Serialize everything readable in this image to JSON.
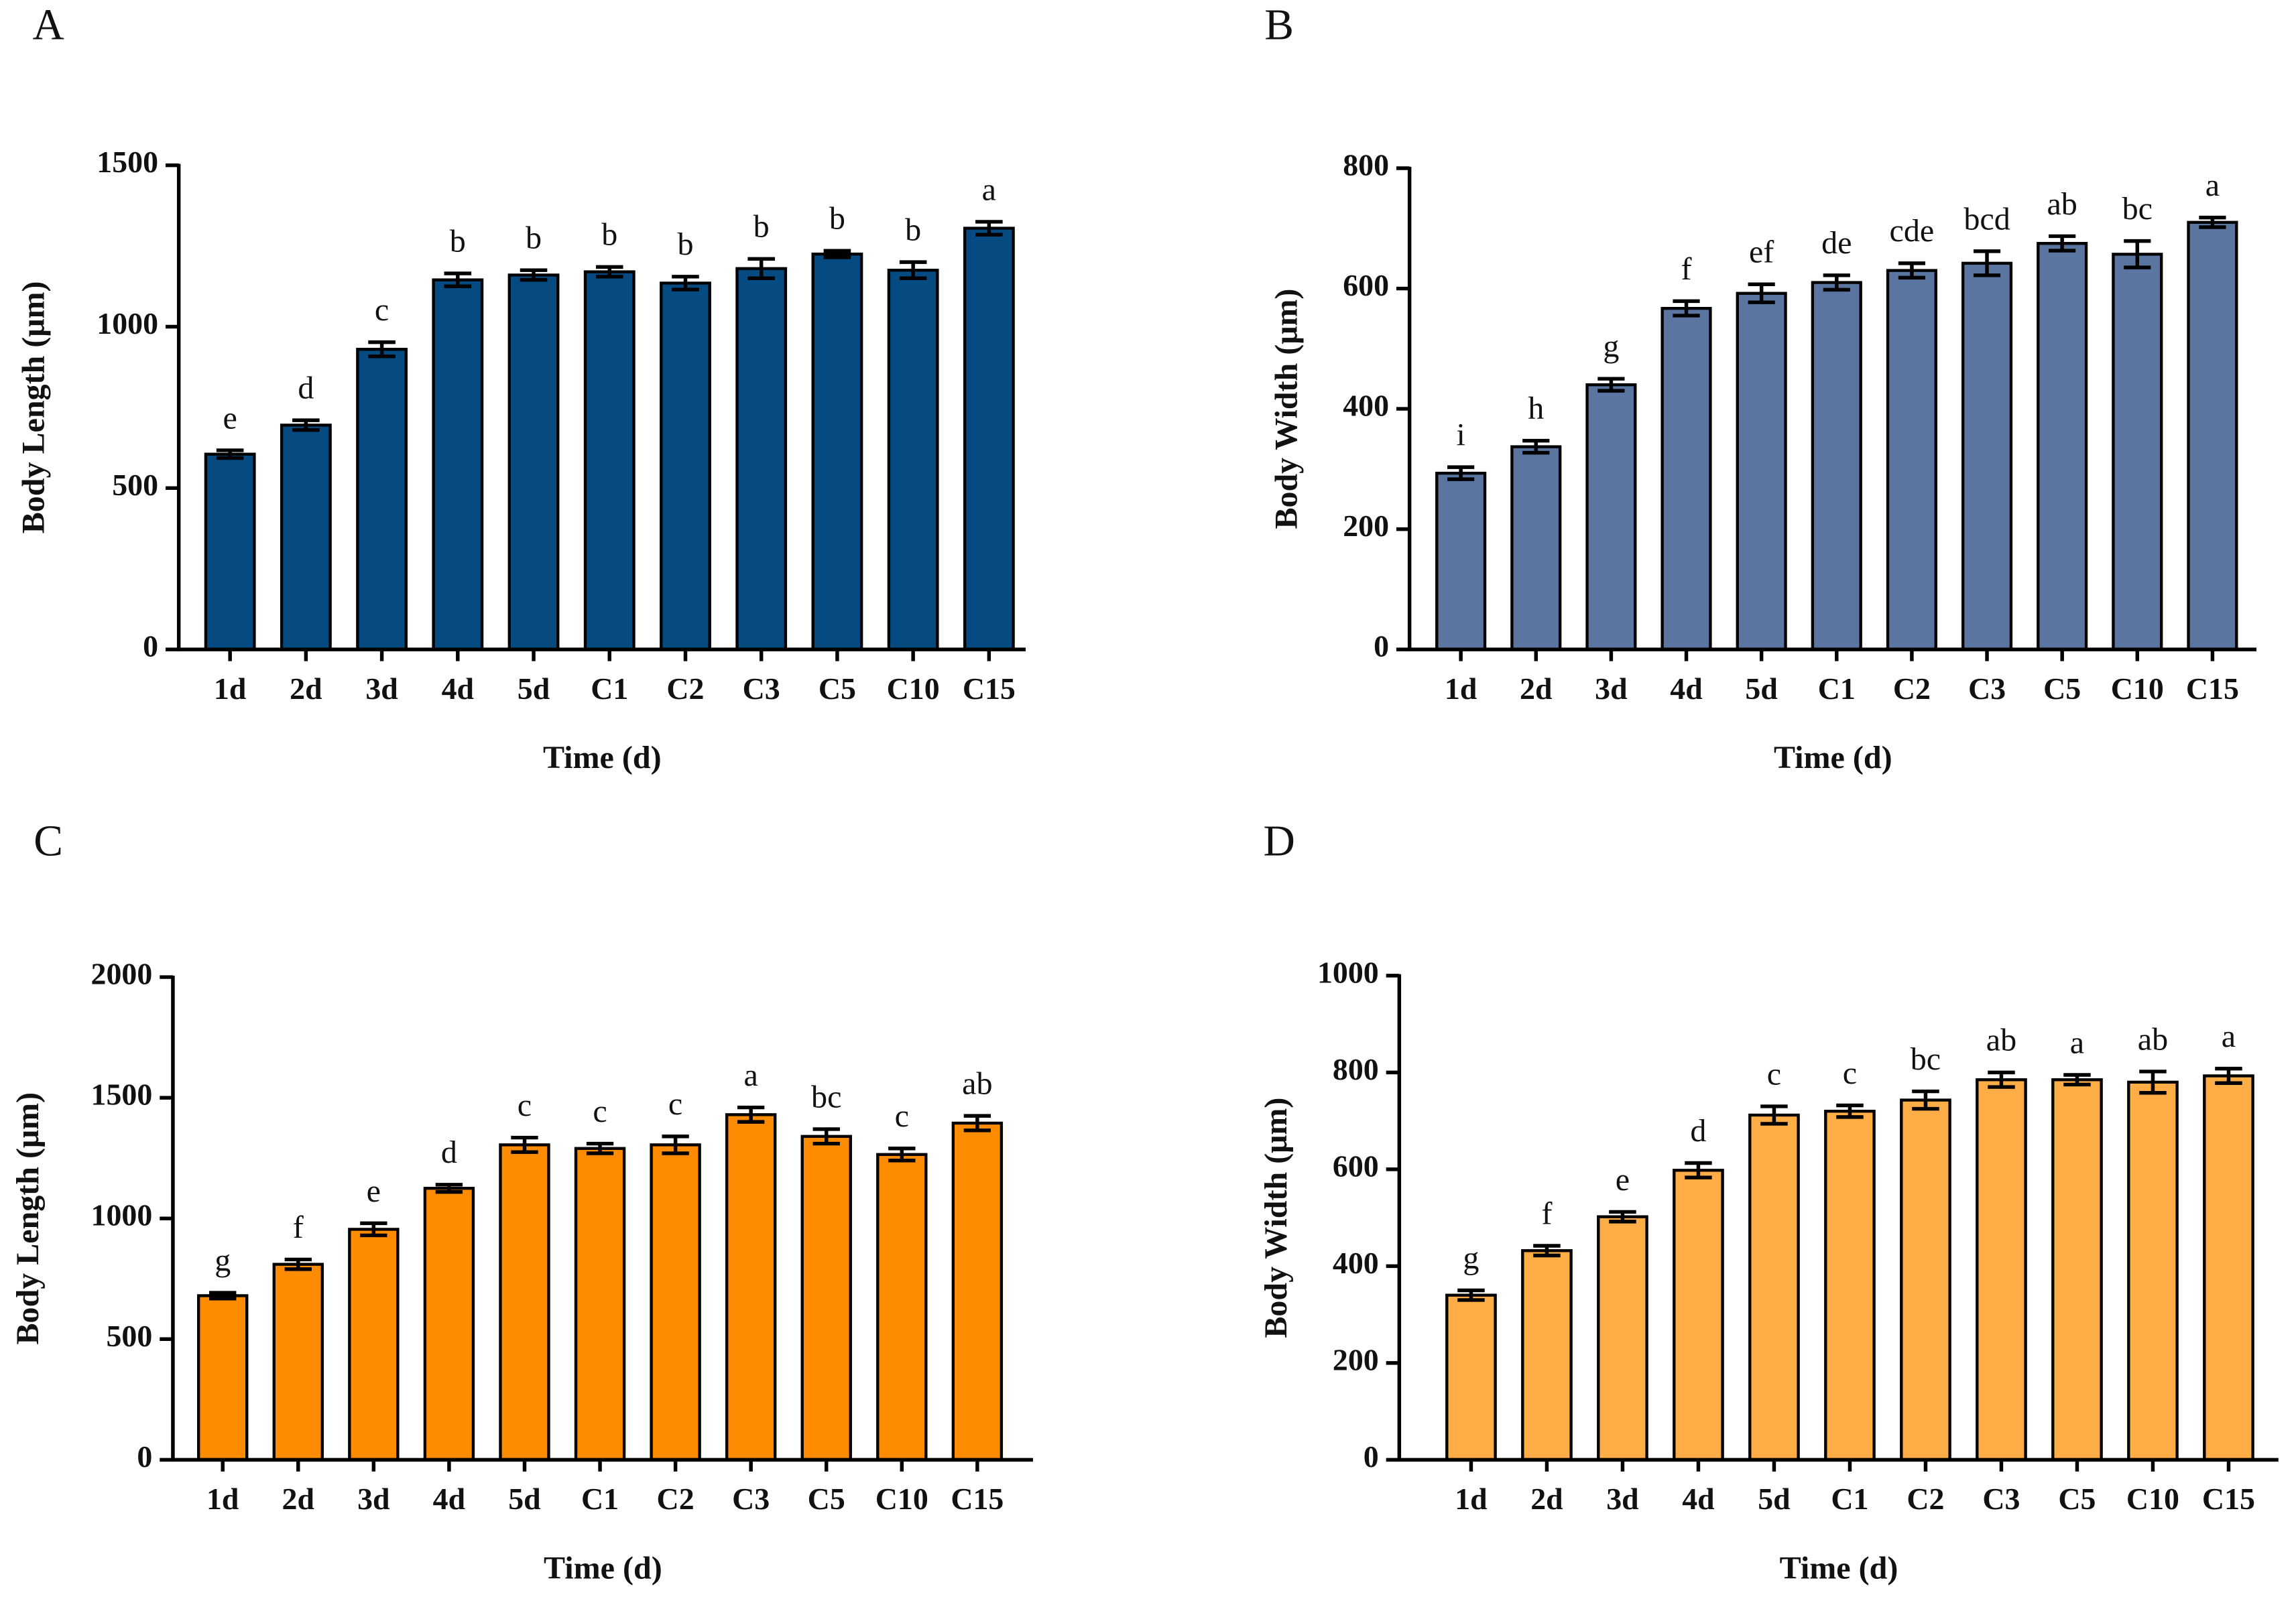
{
  "chart_data": [
    {
      "type": "bar",
      "panel": "A",
      "ylabel": "Body Length (μm)",
      "xlabel": "Time (d)",
      "categories": [
        "1d",
        "2d",
        "3d",
        "4d",
        "5d",
        "C1",
        "C2",
        "C3",
        "C5",
        "C10",
        "C15"
      ],
      "values": [
        605,
        695,
        930,
        1145,
        1160,
        1170,
        1135,
        1180,
        1225,
        1175,
        1305
      ],
      "errors": [
        12,
        15,
        22,
        20,
        15,
        15,
        20,
        30,
        10,
        25,
        20
      ],
      "annotations": [
        "e",
        "d",
        "c",
        "b",
        "b",
        "b",
        "b",
        "b",
        "b",
        "b",
        "a"
      ],
      "color": "#054a80",
      "ylim": [
        0,
        1500
      ],
      "yticks": [
        0,
        500,
        1000,
        1500
      ]
    },
    {
      "type": "bar",
      "panel": "B",
      "ylabel": "Body Width (μm)",
      "xlabel": "Time (d)",
      "categories": [
        "1d",
        "2d",
        "3d",
        "4d",
        "5d",
        "C1",
        "C2",
        "C3",
        "C5",
        "C10",
        "C15"
      ],
      "values": [
        293,
        337,
        440,
        567,
        592,
        610,
        630,
        642,
        675,
        657,
        710
      ],
      "errors": [
        10,
        10,
        10,
        12,
        15,
        12,
        12,
        20,
        12,
        22,
        8
      ],
      "annotations": [
        "i",
        "h",
        "g",
        "f",
        "ef",
        "de",
        "cde",
        "bcd",
        "ab",
        "bc",
        "a"
      ],
      "color": "#5a76a0",
      "ylim": [
        0,
        800
      ],
      "yticks": [
        0,
        200,
        400,
        600,
        800
      ]
    },
    {
      "type": "bar",
      "panel": "C",
      "ylabel": "Body Length (μm)",
      "xlabel": "Time (d)",
      "categories": [
        "1d",
        "2d",
        "3d",
        "4d",
        "5d",
        "C1",
        "C2",
        "C3",
        "C5",
        "C10",
        "C15"
      ],
      "values": [
        680,
        810,
        955,
        1125,
        1305,
        1290,
        1305,
        1430,
        1340,
        1265,
        1395
      ],
      "errors": [
        12,
        20,
        25,
        15,
        30,
        20,
        35,
        30,
        30,
        25,
        30
      ],
      "annotations": [
        "g",
        "f",
        "e",
        "d",
        "c",
        "c",
        "c",
        "a",
        "bc",
        "c",
        "ab"
      ],
      "color": "#ff8c00",
      "ylim": [
        0,
        2000
      ],
      "yticks": [
        0,
        500,
        1000,
        1500,
        2000
      ]
    },
    {
      "type": "bar",
      "panel": "D",
      "ylabel": "Body Width (μm)",
      "xlabel": "Time (d)",
      "categories": [
        "1d",
        "2d",
        "3d",
        "4d",
        "5d",
        "C1",
        "C2",
        "C3",
        "C5",
        "C10",
        "C15"
      ],
      "values": [
        340,
        432,
        502,
        598,
        712,
        720,
        743,
        785,
        785,
        780,
        793
      ],
      "errors": [
        10,
        10,
        10,
        15,
        18,
        12,
        18,
        15,
        10,
        22,
        15
      ],
      "annotations": [
        "g",
        "f",
        "e",
        "d",
        "c",
        "c",
        "bc",
        "ab",
        "a",
        "ab",
        "a"
      ],
      "color": "#ffad47",
      "ylim": [
        0,
        1000
      ],
      "yticks": [
        0,
        200,
        400,
        600,
        800,
        1000
      ]
    }
  ]
}
